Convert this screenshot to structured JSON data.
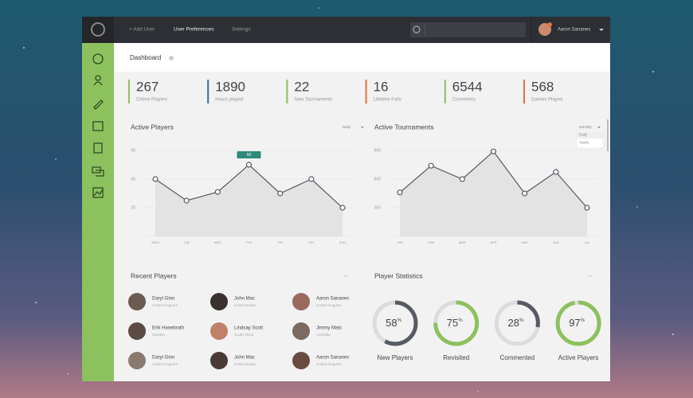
{
  "topbar": {
    "nav": [
      "+ Add User",
      "User Preferences",
      "Settings"
    ],
    "user": "Aaron Sananes"
  },
  "header": {
    "title": "Dashboard"
  },
  "stats": [
    {
      "value": 267,
      "label": "Online Players",
      "color": "#8cc15e"
    },
    {
      "value": 1890,
      "label": "Hours played",
      "color": "#2b7391"
    },
    {
      "value": 22,
      "label": "New Tournaments",
      "color": "#8cc15e"
    },
    {
      "value": 16,
      "label": "Lifetime Fails",
      "color": "#e2713f"
    },
    {
      "value": 6544,
      "label": "Comments",
      "color": "#8cc15e"
    },
    {
      "value": 568,
      "label": "Games Played",
      "color": "#e2713f"
    }
  ],
  "active_players": {
    "type": "line",
    "title": "Active Players",
    "period": "Daily",
    "categories": [
      "MON",
      "TUE",
      "WED",
      "THU",
      "FRI",
      "SAT",
      "SUN"
    ],
    "values": [
      40,
      25,
      31,
      50,
      30,
      40,
      20
    ],
    "ylim": [
      0,
      60
    ],
    "yticks": [
      20,
      40,
      60
    ],
    "highlight": 3
  },
  "active_tournaments": {
    "type": "line",
    "title": "Active Tournaments",
    "period": "Monthly",
    "menu": [
      "Daily",
      "Yearly"
    ],
    "categories": [
      "JAN",
      "FEB",
      "MAR",
      "APR",
      "MAY",
      "JUN",
      "JUL"
    ],
    "values": [
      460,
      740,
      600,
      890,
      450,
      675,
      300
    ],
    "ylim": [
      0,
      900
    ],
    "yticks": [
      300,
      600,
      900
    ]
  },
  "recent_players": {
    "title": "Recent Players",
    "players": [
      {
        "name": "Daryl Ginn",
        "country": "United Kingdom"
      },
      {
        "name": "John Mac",
        "country": "United States"
      },
      {
        "name": "Aaron Sananes",
        "country": "United Kingdom"
      },
      {
        "name": "Erik Hanebrath",
        "country": "Sweden"
      },
      {
        "name": "Lindsay Scott",
        "country": "South Africa"
      },
      {
        "name": "Jimmy Mats",
        "country": "Australia"
      },
      {
        "name": "Daryl Ginn",
        "country": "United Kingdom"
      },
      {
        "name": "John Mac",
        "country": "United States"
      },
      {
        "name": "Aaron Sananes",
        "country": "United Kingdom"
      }
    ]
  },
  "player_statistics": {
    "title": "Player Statistics",
    "items": [
      {
        "value": 58,
        "unit": "%",
        "label": "New Players",
        "color": "#555a63"
      },
      {
        "value": 75,
        "unit": "%",
        "label": "Revisited",
        "color": "#8cc15e"
      },
      {
        "value": 28,
        "unit": "%",
        "label": "Commented",
        "color": "#555a63"
      },
      {
        "value": 97,
        "unit": "%",
        "label": "Active Players",
        "color": "#8cc15e"
      }
    ]
  }
}
